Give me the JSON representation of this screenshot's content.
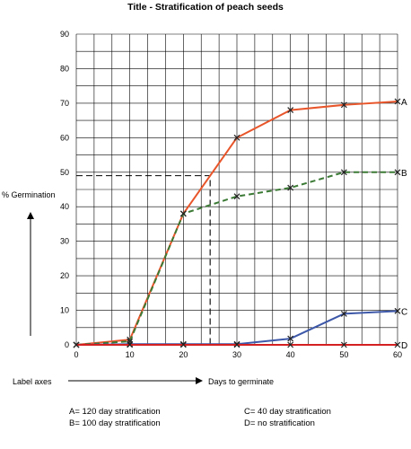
{
  "chart_data": {
    "type": "line",
    "title": "Title - Stratification of peach seeds",
    "xlabel": "Days to germinate",
    "ylabel": "% Germination",
    "axes_note": "Label axes",
    "xlim": [
      0,
      60
    ],
    "ylim": [
      0,
      90
    ],
    "x_ticks": [
      0,
      10,
      20,
      30,
      40,
      50,
      60
    ],
    "y_ticks": [
      0,
      10,
      20,
      30,
      40,
      50,
      60,
      70,
      80,
      90
    ],
    "grid": true,
    "series": [
      {
        "name": "A",
        "color": "#e8552a",
        "dashed": false,
        "points": [
          [
            0,
            0
          ],
          [
            10,
            1.5
          ],
          [
            20,
            38
          ],
          [
            30,
            60
          ],
          [
            40,
            68
          ],
          [
            50,
            69.5
          ],
          [
            60,
            70.5
          ]
        ]
      },
      {
        "name": "B",
        "color": "#3b7a35",
        "dashed": true,
        "points": [
          [
            0,
            0
          ],
          [
            10,
            1
          ],
          [
            20,
            38
          ],
          [
            30,
            43
          ],
          [
            40,
            45.5
          ],
          [
            50,
            50
          ],
          [
            60,
            50
          ]
        ]
      },
      {
        "name": "C",
        "color": "#3d58a8",
        "dashed": false,
        "points": [
          [
            0,
            0
          ],
          [
            10,
            0.2
          ],
          [
            20,
            0.2
          ],
          [
            30,
            0.2
          ],
          [
            40,
            1.8
          ],
          [
            50,
            9
          ],
          [
            60,
            9.8
          ]
        ]
      },
      {
        "name": "D",
        "color": "#d42020",
        "dashed": false,
        "points": [
          [
            0,
            0
          ],
          [
            10,
            0
          ],
          [
            20,
            0
          ],
          [
            30,
            0
          ],
          [
            40,
            0
          ],
          [
            50,
            0
          ],
          [
            60,
            0
          ]
        ]
      }
    ],
    "annotation_lines": [
      {
        "points": [
          [
            0,
            49
          ],
          [
            25,
            49
          ],
          [
            25,
            0
          ]
        ],
        "color": "#000000",
        "dashed": true
      }
    ],
    "legend": [
      "A= 120 day stratification",
      "B= 100 day stratification",
      "C= 40 day stratification",
      "D= no stratification"
    ]
  }
}
